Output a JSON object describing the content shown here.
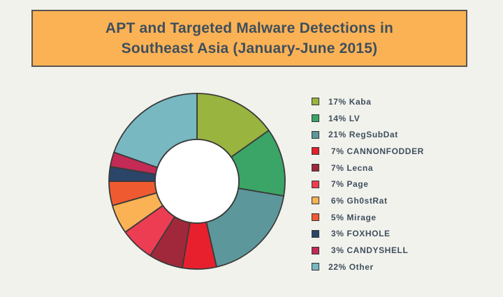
{
  "title": {
    "line1": "APT and Targeted Malware Detections in",
    "line2": "Southeast Asia (January-June 2015)"
  },
  "chart_data": {
    "type": "pie",
    "donut": true,
    "title": "APT and Targeted Malware Detections in Southeast Asia (January-June 2015)",
    "legend_position": "right",
    "slices": [
      {
        "name": "Kaba",
        "value": 17,
        "label": "17% Kaba",
        "color": "#99b43f"
      },
      {
        "name": "LV",
        "value": 14,
        "label": "14% LV",
        "color": "#3aa566"
      },
      {
        "name": "RegSubDat",
        "value": 21,
        "label": "21% RegSubDat",
        "color": "#5c979b"
      },
      {
        "name": "CANNONFODDER",
        "value": 7,
        "label": " 7% CANNONFODDER",
        "color": "#e8202e"
      },
      {
        "name": "Lecna",
        "value": 7,
        "label": " 7% Lecna",
        "color": "#a1283a"
      },
      {
        "name": "Page",
        "value": 7,
        "label": " 7% Page",
        "color": "#ec3d52"
      },
      {
        "name": "Gh0stRat",
        "value": 6,
        "label": " 6% Gh0stRat",
        "color": "#fbb255"
      },
      {
        "name": "Mirage",
        "value": 5,
        "label": " 5% Mirage",
        "color": "#f05a30"
      },
      {
        "name": "FOXHOLE",
        "value": 3,
        "label": " 3% FOXHOLE",
        "color": "#2b4569"
      },
      {
        "name": "CANDYSHELL",
        "value": 3,
        "label": " 3% CANDYSHELL",
        "color": "#c32a55"
      },
      {
        "name": "Other",
        "value": 22,
        "label": "22% Other",
        "color": "#77b8c1"
      }
    ]
  }
}
